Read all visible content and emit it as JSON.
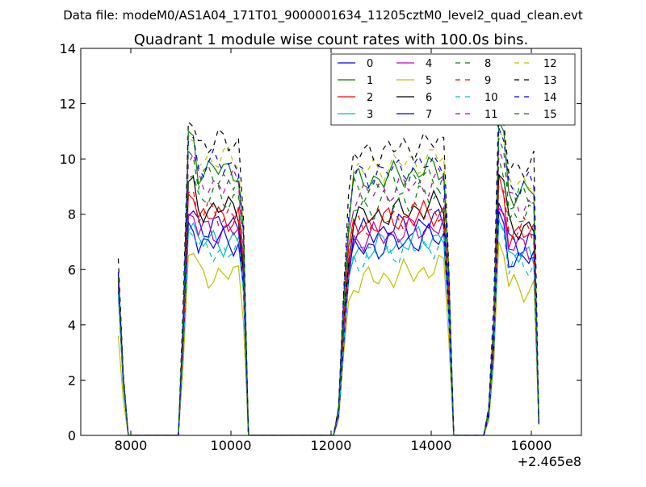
{
  "figure": {
    "suptitle": "Data file: modeM0/AS1A04_171T01_9000001634_11205cztM0_level2_quad_clean.evt"
  },
  "chart_data": {
    "type": "line",
    "title": "Quadrant 1 module wise count rates with 100.0s bins.",
    "xlabel": "",
    "ylabel": "",
    "x_offset_label": "+2.465e8",
    "xlim": [
      7000,
      17000
    ],
    "ylim": [
      0,
      14
    ],
    "x_ticks": [
      8000,
      10000,
      12000,
      14000,
      16000
    ],
    "y_ticks": [
      0,
      2,
      4,
      6,
      8,
      10,
      12,
      14
    ],
    "grid": false,
    "legend": {
      "placement": "top-right",
      "columns": 4
    },
    "x": [
      7750,
      7850,
      7950,
      8050,
      8150,
      8250,
      8350,
      8450,
      8550,
      8650,
      8750,
      8850,
      8950,
      9050,
      9150,
      9250,
      9350,
      9450,
      9550,
      9650,
      9750,
      9850,
      9950,
      10050,
      10150,
      10250,
      10350,
      10450,
      10550,
      10650,
      10750,
      10850,
      10950,
      11050,
      11150,
      11250,
      11350,
      11450,
      11550,
      11650,
      11750,
      11850,
      11950,
      12050,
      12150,
      12250,
      12350,
      12450,
      12550,
      12650,
      12750,
      12850,
      12950,
      13050,
      13150,
      13250,
      13350,
      13450,
      13550,
      13650,
      13750,
      13850,
      13950,
      14050,
      14150,
      14250,
      14350,
      14450,
      14550,
      14650,
      14750,
      14850,
      14950,
      15050,
      15150,
      15250,
      15350,
      15450,
      15550,
      15650,
      15750,
      15850,
      15950,
      16050,
      16150
    ],
    "series": [
      {
        "name": "0",
        "color": "#0000ff",
        "dash": "solid",
        "base": 7.6,
        "lead": 5.8,
        "w": 8.0
      },
      {
        "name": "1",
        "color": "#008000",
        "dash": "solid",
        "base": 9.6,
        "lead": 5.9,
        "w": 10.8
      },
      {
        "name": "2",
        "color": "#ff0000",
        "dash": "solid",
        "base": 7.9,
        "lead": 5.6,
        "w": 8.8
      },
      {
        "name": "3",
        "color": "#00bfbf",
        "dash": "solid",
        "base": 7.0,
        "lead": 5.3,
        "w": 7.6
      },
      {
        "name": "4",
        "color": "#bf00bf",
        "dash": "solid",
        "base": 7.4,
        "lead": 5.4,
        "w": 7.9
      },
      {
        "name": "5",
        "color": "#bfbf00",
        "dash": "solid",
        "base": 5.8,
        "lead": 3.6,
        "w": 6.6
      },
      {
        "name": "6",
        "color": "#000000",
        "dash": "solid",
        "base": 8.2,
        "lead": 5.7,
        "w": 9.1
      },
      {
        "name": "7",
        "color": "#0000ff",
        "dash": "solid",
        "base": 7.0,
        "lead": 5.2,
        "w": 7.5
      },
      {
        "name": "8",
        "color": "#008000",
        "dash": "dashed",
        "base": 8.6,
        "lead": 5.6,
        "w": 9.5
      },
      {
        "name": "9",
        "color": "#ff0000",
        "dash": "dashed",
        "base": 8.0,
        "lead": 5.6,
        "w": 8.8
      },
      {
        "name": "10",
        "color": "#00bfbf",
        "dash": "dashed",
        "base": 6.7,
        "lead": 5.1,
        "w": 7.4
      },
      {
        "name": "11",
        "color": "#bf00bf",
        "dash": "dashed",
        "base": 9.1,
        "lead": 5.7,
        "w": 10.0
      },
      {
        "name": "12",
        "color": "#bfbf00",
        "dash": "dashed",
        "base": 10.0,
        "lead": 5.9,
        "w": 10.5
      },
      {
        "name": "13",
        "color": "#000000",
        "dash": "dashed",
        "base": 10.6,
        "lead": 6.4,
        "w": 11.3
      },
      {
        "name": "14",
        "color": "#0000ff",
        "dash": "dashed",
        "base": 9.8,
        "lead": 5.9,
        "w": 10.7
      },
      {
        "name": "15",
        "color": "#008000",
        "dash": "dashed",
        "base": 9.3,
        "lead": 5.7,
        "w": 10.2
      }
    ]
  }
}
